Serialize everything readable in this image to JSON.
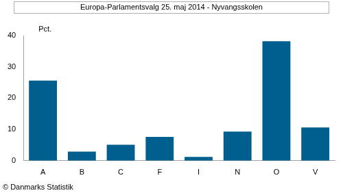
{
  "chart_data": {
    "type": "bar",
    "title": "Europa-Parlamentsvalg 25. maj 2014 - Nyvangsskolen",
    "ylabel": "Pct.",
    "annotation": "© Danmarks Statistik",
    "categories": [
      "A",
      "B",
      "C",
      "F",
      "I",
      "N",
      "O",
      "V"
    ],
    "values": [
      25.6,
      2.9,
      5.1,
      7.6,
      1.2,
      9.3,
      38.2,
      10.6
    ],
    "color": "#005f8f",
    "ylim": [
      0,
      40
    ],
    "yticks": [
      0,
      10,
      20,
      30,
      40
    ],
    "grid": false
  }
}
